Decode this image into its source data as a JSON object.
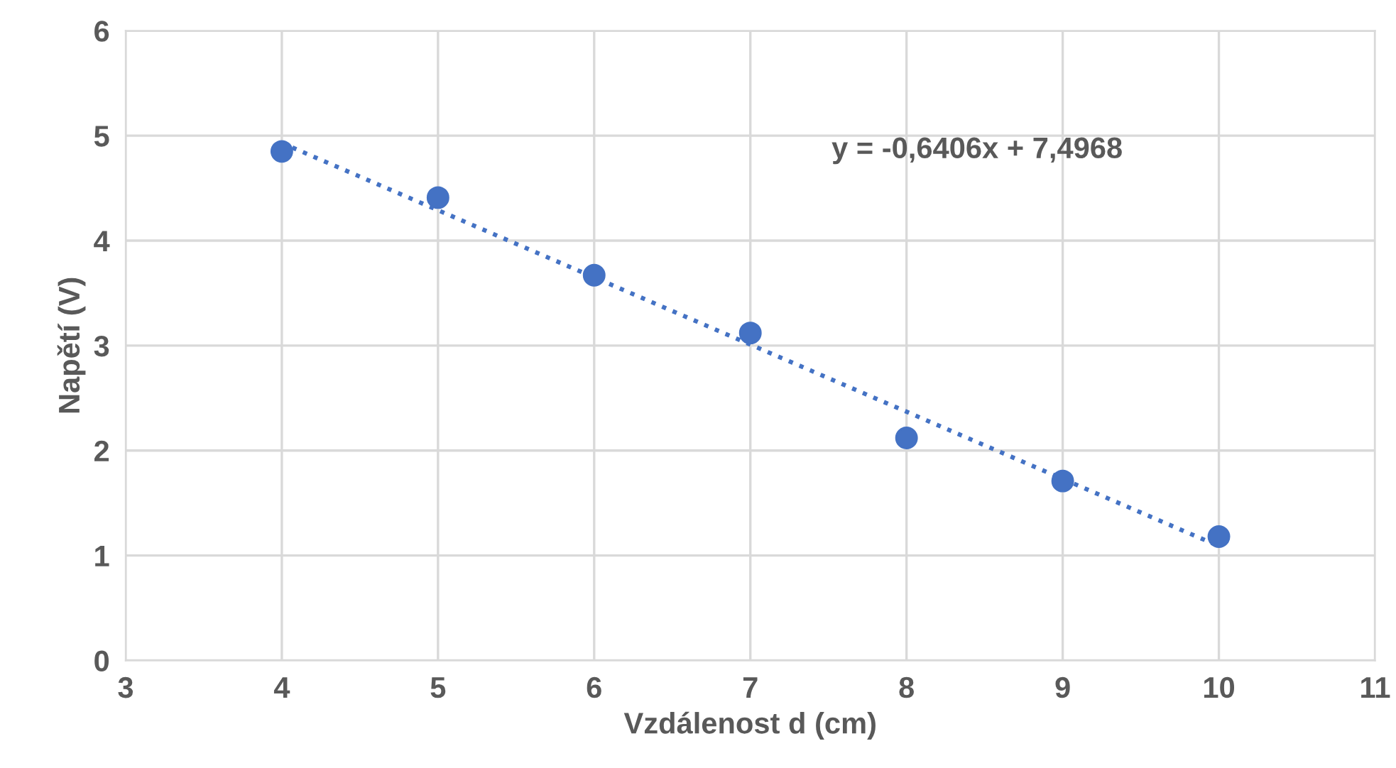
{
  "chart_data": {
    "type": "scatter",
    "xlabel": "Vzdálenost d (cm)",
    "ylabel": "Napětí (V)",
    "x": [
      4,
      5,
      6,
      7,
      8,
      9,
      10
    ],
    "series": [
      {
        "color": "#4472c4",
        "marker": "circle",
        "values": [
          4.85,
          4.41,
          3.67,
          3.12,
          2.12,
          1.71,
          1.18
        ]
      },
      {
        "type": "line",
        "color": "#4472c4",
        "line_style": "dotted",
        "x": [
          4,
          10
        ],
        "values": [
          4.93,
          1.09
        ]
      }
    ],
    "annotations": [
      "y = -0,6406x + 7,4968"
    ],
    "xlim": [
      3,
      11
    ],
    "xticks": [
      3,
      4,
      5,
      6,
      7,
      8,
      9,
      10,
      11
    ],
    "ylim": [
      0,
      6
    ],
    "yticks": [
      0,
      1,
      2,
      3,
      4,
      5,
      6
    ],
    "grid": true
  }
}
